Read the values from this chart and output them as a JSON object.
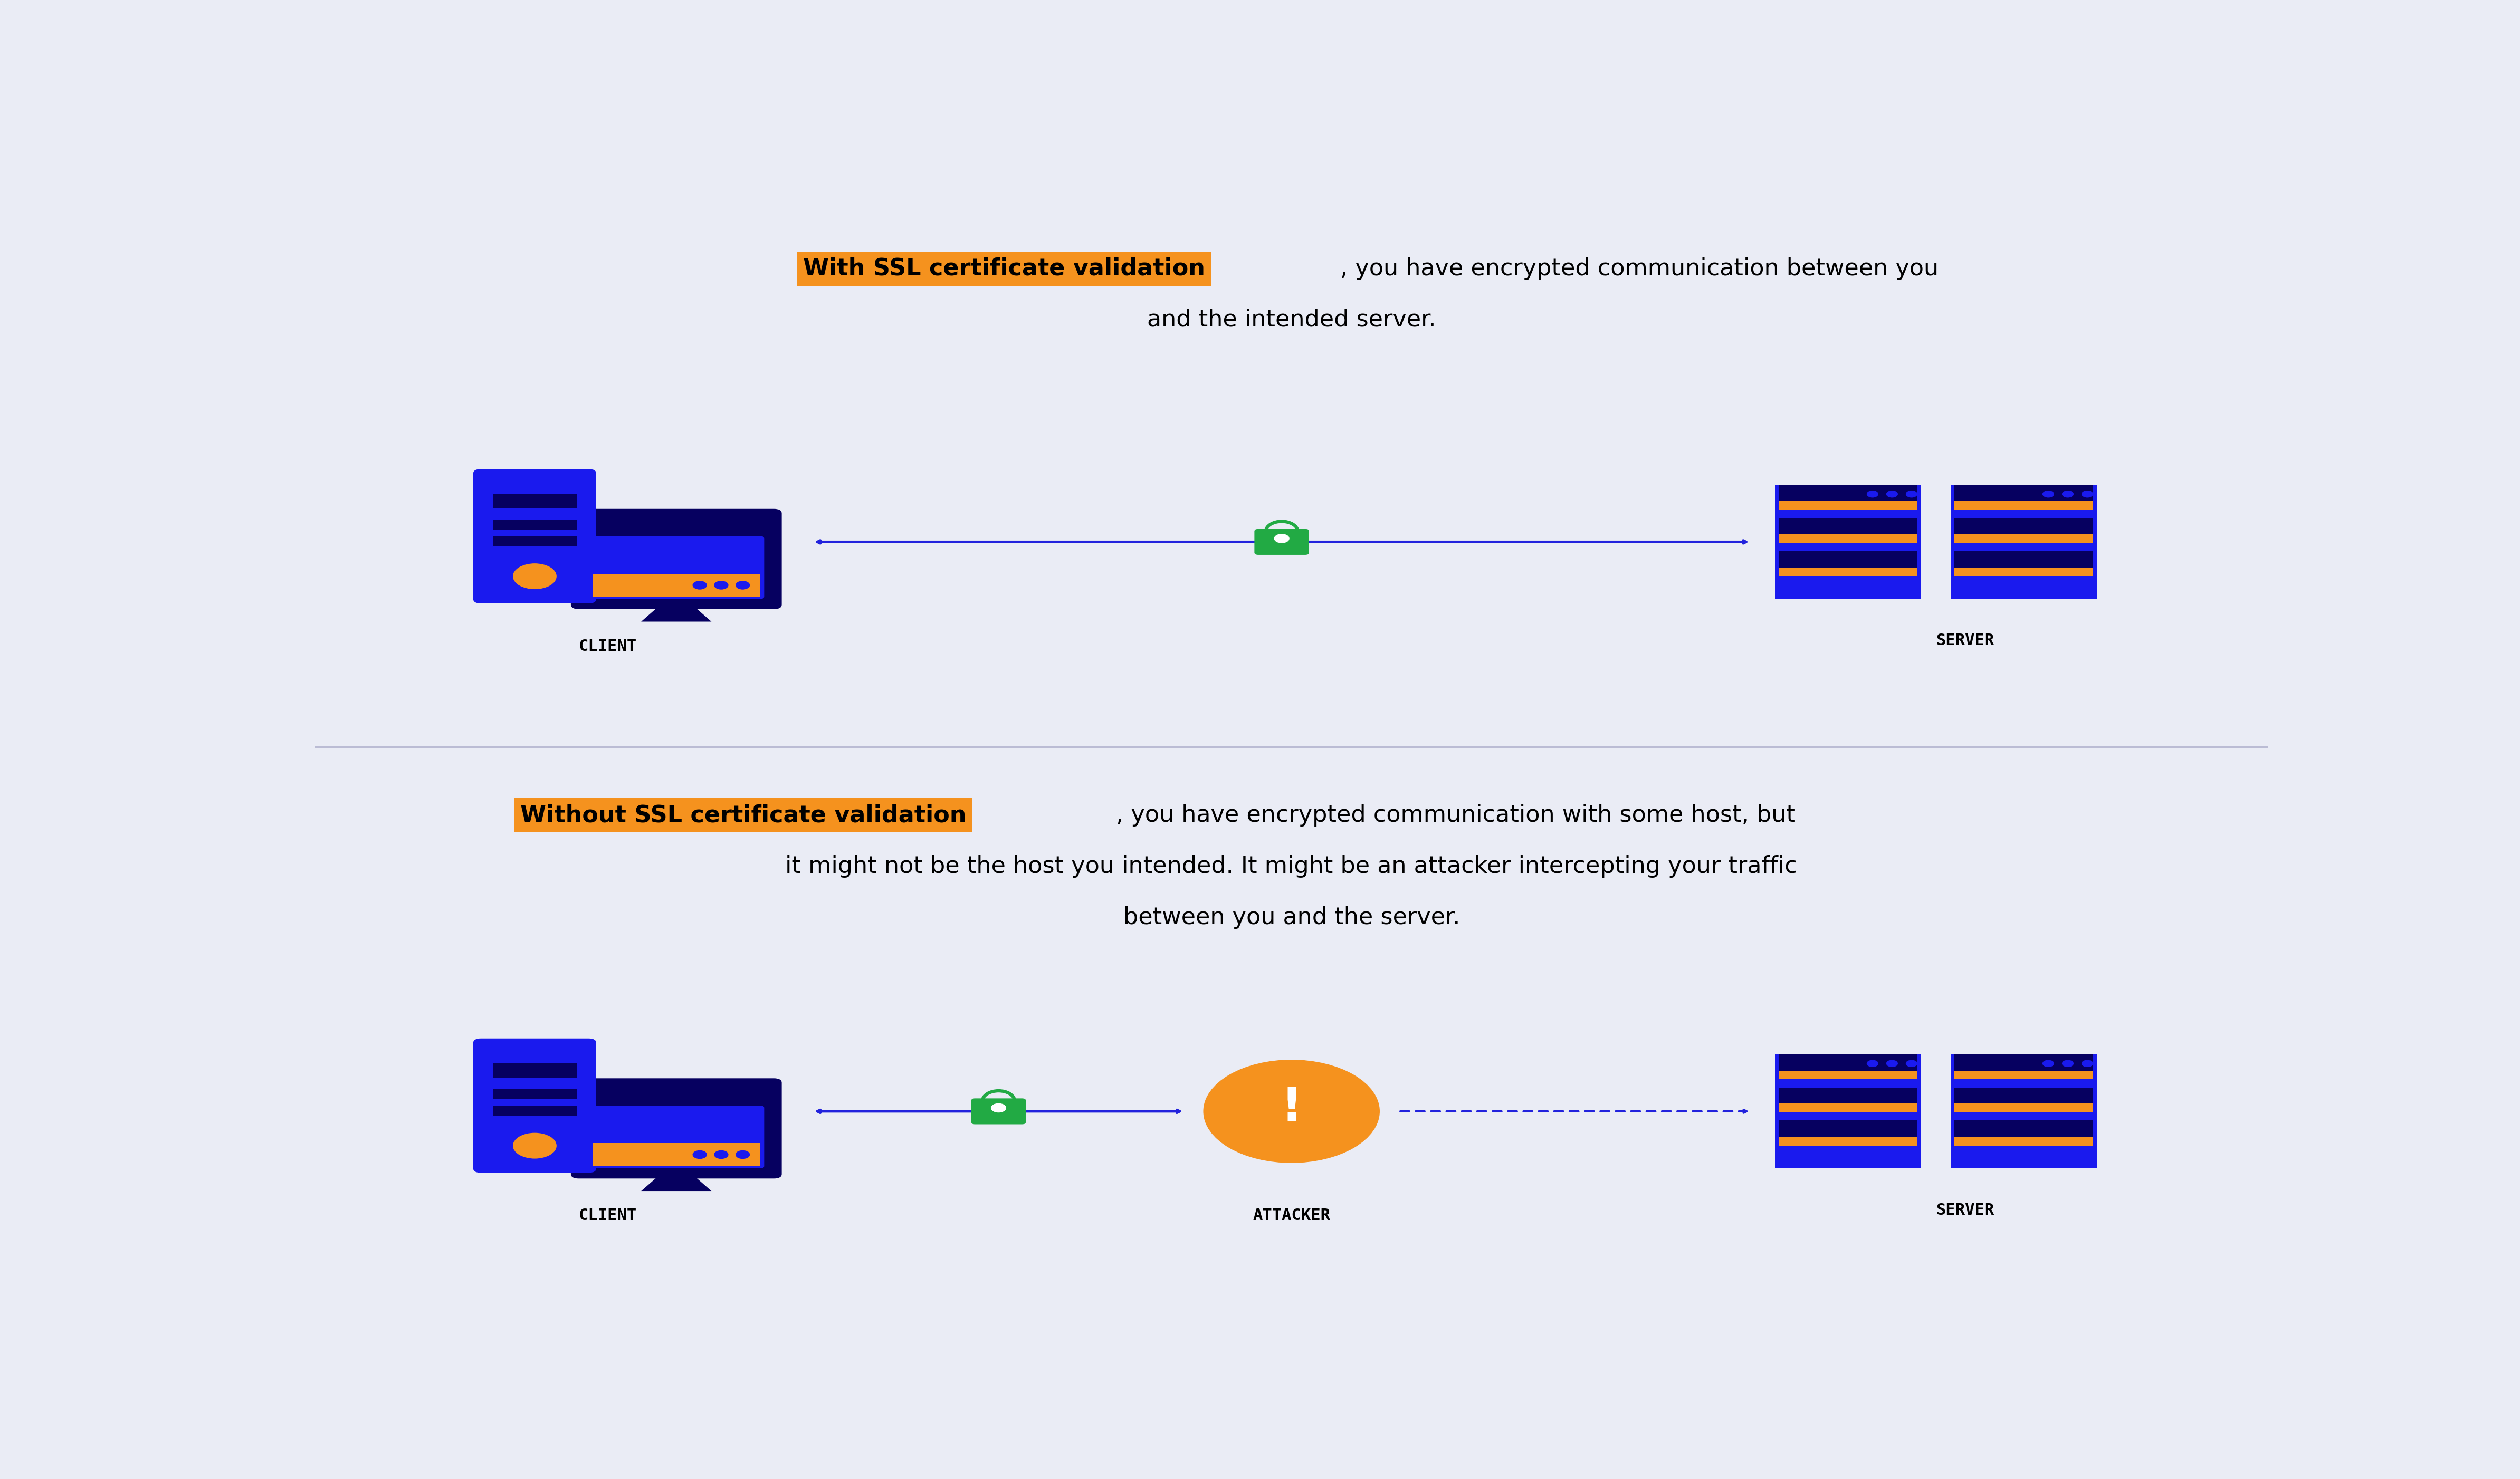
{
  "bg_color": "#eaecf5",
  "highlight_bg": "#f5921e",
  "blue": "#1a1aee",
  "dark_navy": "#060060",
  "orange": "#f5921e",
  "green": "#22aa44",
  "arrow_color": "#2222dd",
  "divider_color": "#b0b0cc",
  "title1_highlight": "With SSL certificate validation",
  "title1_rest_line1": ", you have encrypted communication between you",
  "title1_rest_line2": "and the intended server.",
  "title2_highlight": "Without SSL certificate validation",
  "title2_rest_line1": ", you have encrypted communication with some host, but",
  "title2_rest_line2": "it might not be the host you intended. It might be an attacker intercepting your traffic",
  "title2_rest_line3": "between you and the server.",
  "label_client": "CLIENT",
  "label_server": "SERVER",
  "label_attacker": "ATTACKER",
  "title_fontsize": 32,
  "label_fontsize": 22
}
